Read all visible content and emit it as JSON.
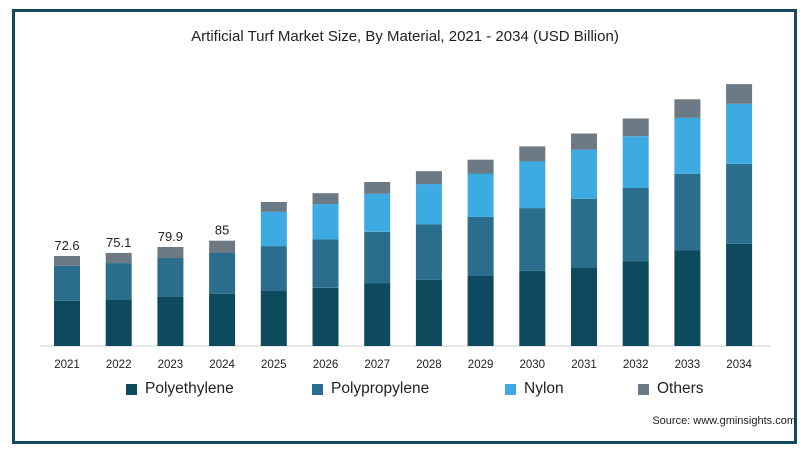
{
  "chart_data": {
    "type": "bar",
    "stacked": true,
    "title": "Artificial Turf Market Size, By Material, 2021 - 2034 (USD Billion)",
    "xlabel": "",
    "ylabel": "",
    "categories": [
      "2021",
      "2022",
      "2023",
      "2024",
      "2025",
      "2026",
      "2027",
      "2028",
      "2029",
      "2030",
      "2031",
      "2032",
      "2033",
      "2034"
    ],
    "ylim": [
      0,
      205
    ],
    "grid": false,
    "legend_position": "bottom",
    "series": [
      {
        "name": "Polyethylene",
        "color": "#0d4a5e",
        "values": [
          36.5,
          37.7,
          39.9,
          42.2,
          44.7,
          47.0,
          50.5,
          53.4,
          56.5,
          60.7,
          63.6,
          68.2,
          77.1,
          82.4
        ]
      },
      {
        "name": "Polypropylene",
        "color": "#2a6d8c",
        "values": [
          28.3,
          29.2,
          31.1,
          33.2,
          35.9,
          39.0,
          41.7,
          44.8,
          47.7,
          50.6,
          55.2,
          59.3,
          61.8,
          64.6
        ]
      },
      {
        "name": "Nylon",
        "color": "#3daae2",
        "values": [
          0.0,
          0.0,
          0.0,
          0.0,
          27.6,
          28.5,
          30.7,
          32.5,
          35.0,
          37.6,
          39.6,
          41.8,
          45.2,
          48.5
        ]
      },
      {
        "name": "Others",
        "color": "#6c7a86",
        "values": [
          7.8,
          8.2,
          8.9,
          9.6,
          8.0,
          8.8,
          9.5,
          10.4,
          11.2,
          12.2,
          13.1,
          14.3,
          15.0,
          15.9
        ]
      }
    ],
    "totals_labels": [
      {
        "index": 0,
        "text": "72.6"
      },
      {
        "index": 1,
        "text": "75.1"
      },
      {
        "index": 2,
        "text": "79.9"
      },
      {
        "index": 3,
        "text": "85"
      }
    ]
  },
  "source": "Source: www.gminsights.com"
}
